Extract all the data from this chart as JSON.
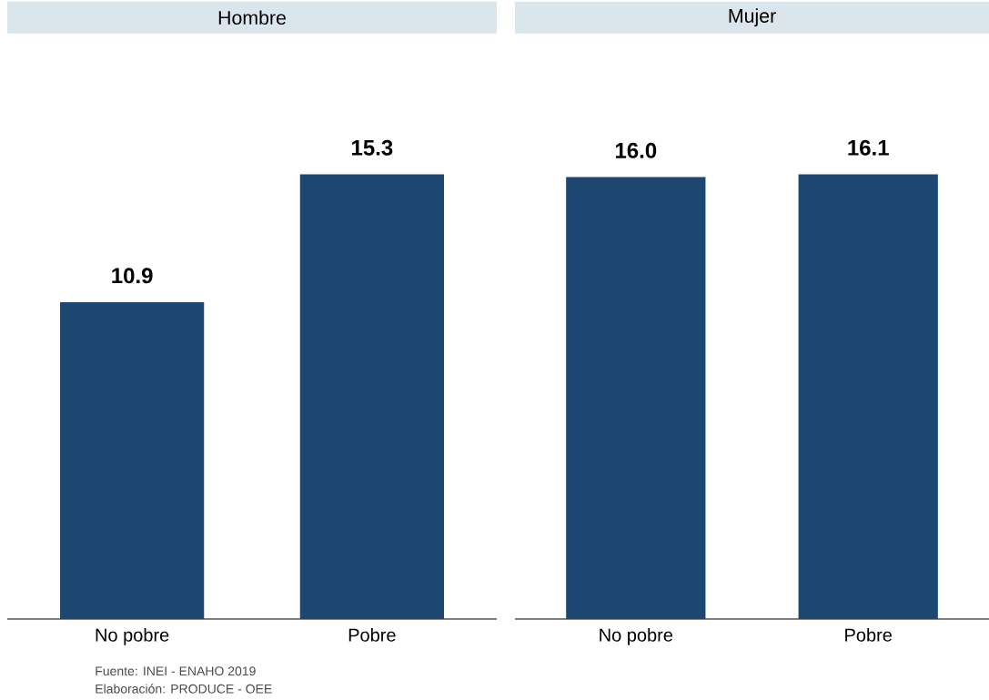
{
  "chart_data": [
    {
      "type": "bar",
      "title": "Hombre",
      "categories": [
        "No pobre",
        "Pobre"
      ],
      "values": [
        10.9,
        15.3
      ],
      "value_labels": [
        "10.9",
        "15.3"
      ],
      "color": "#1d4770",
      "annotations": [
        "Fuente: INEI - ENAHO 2019",
        "Elaboración: PRODUCE - OEE"
      ]
    },
    {
      "type": "bar",
      "title": "Mujer",
      "categories": [
        "No pobre",
        "Pobre"
      ],
      "values": [
        16.0,
        16.1
      ],
      "value_labels": [
        "16.0",
        "16.1"
      ],
      "color": "#1d4770"
    }
  ]
}
